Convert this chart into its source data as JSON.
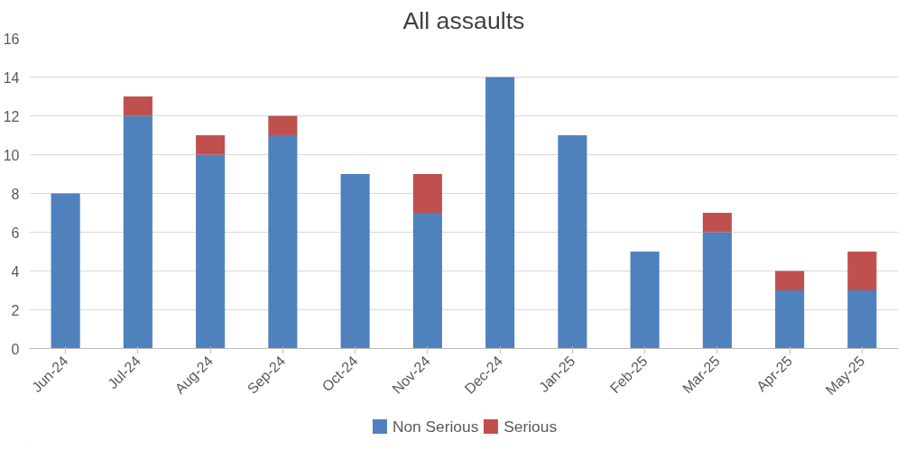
{
  "chart_data": {
    "type": "bar",
    "title": "All assaults",
    "stacked": true,
    "categories": [
      "Jun-24",
      "Jul-24",
      "Aug-24",
      "Sep-24",
      "Oct-24",
      "Nov-24",
      "Dec-24",
      "Jan-25",
      "Feb-25",
      "Mar-25",
      "Apr-25",
      "May-25"
    ],
    "series": [
      {
        "name": "Non Serious",
        "color": "#4f81bd",
        "values": [
          8,
          12,
          10,
          11,
          9,
          7,
          14,
          11,
          5,
          6,
          3,
          3
        ]
      },
      {
        "name": "Serious",
        "color": "#c0504d",
        "values": [
          0,
          1,
          1,
          1,
          0,
          2,
          0,
          0,
          0,
          1,
          1,
          2
        ]
      }
    ],
    "ylim": [
      0,
      16
    ],
    "yticks": [
      0,
      2,
      4,
      6,
      8,
      10,
      12,
      14,
      16
    ],
    "grid": "y",
    "legend": "bottom"
  }
}
